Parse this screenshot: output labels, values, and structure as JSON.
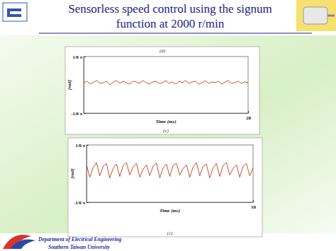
{
  "page": {
    "title": "Sensorless speed control using the signum function at 2000 r/min",
    "department": "Department of Electrical Engineering",
    "university": "Southern Taiwan University"
  },
  "chart_data": [
    {
      "type": "line",
      "header": "(d)",
      "caption": "(c)",
      "x_label": "Time (ms)",
      "y_label": "[rad]",
      "x": [
        0,
        0.4,
        0.8,
        1.2,
        1.6,
        2,
        2.4,
        2.8,
        3.2,
        3.6,
        4,
        4.4,
        4.8,
        5.2,
        5.6,
        6,
        6.4,
        6.8,
        7.2,
        7.6,
        8,
        8.4,
        8.8,
        9.2,
        9.6,
        10,
        10.4,
        10.8,
        11.2,
        11.6,
        12,
        12.4,
        12.8,
        13.2,
        13.6,
        14,
        14.4,
        14.8,
        15.2,
        15.6,
        16,
        16.4,
        16.8,
        17.2,
        17.6,
        18,
        18.4,
        18.8,
        19.2,
        19.6,
        20
      ],
      "series": [
        {
          "color": "#c8502d",
          "values": [
            0.03,
            0.05,
            0.01,
            0.04,
            0.06,
            0.02,
            0.03,
            0.05,
            0.0,
            0.04,
            0.06,
            0.02,
            0.05,
            0.03,
            0.01,
            0.05,
            0.04,
            0.02,
            0.06,
            0.03,
            0.01,
            0.04,
            0.05,
            0.02,
            0.03,
            0.06,
            0.02,
            0.04,
            0.01,
            0.05,
            0.03,
            0.06,
            0.02,
            0.04,
            0.05,
            0.01,
            0.03,
            0.06,
            0.02,
            0.04,
            0.03,
            0.05,
            0.01,
            0.04,
            0.06,
            0.02,
            0.03,
            0.05,
            0.02,
            0.04,
            0.03
          ]
        }
      ],
      "xlim": [
        0,
        20
      ],
      "xticks": [
        20
      ],
      "ylim": [
        -0.3927,
        0.3927
      ],
      "yticks": [
        {
          "value": -0.3927,
          "label": "-1/8 π"
        },
        {
          "value": 0.3927,
          "label": "1/8 π"
        }
      ],
      "grid": false
    },
    {
      "type": "line",
      "caption": "(c)",
      "x_label": "Time (ms)",
      "y_label": "[rad]",
      "x": [
        0,
        0.2,
        0.4,
        0.6,
        0.8,
        1,
        1.2,
        1.4,
        1.6,
        1.8,
        2,
        2.2,
        2.4,
        2.6,
        2.8,
        3,
        3.2,
        3.4,
        3.6,
        3.8,
        4,
        4.2,
        4.4,
        4.6,
        4.8,
        5,
        5.2,
        5.4,
        5.6,
        5.8,
        6,
        6.2,
        6.4,
        6.6,
        6.8,
        7,
        7.2,
        7.4,
        7.6,
        7.8,
        8,
        8.2,
        8.4,
        8.6,
        8.8,
        9,
        9.2,
        9.4,
        9.6,
        9.8,
        10
      ],
      "series": [
        {
          "color": "#c8502d",
          "values": [
            0.12,
            -0.05,
            0.08,
            0.15,
            -0.03,
            0.1,
            0.14,
            -0.06,
            0.07,
            0.13,
            -0.04,
            0.11,
            0.15,
            -0.02,
            0.09,
            0.14,
            -0.05,
            0.06,
            0.12,
            -0.03,
            0.1,
            0.15,
            -0.06,
            0.08,
            0.13,
            -0.04,
            0.11,
            0.14,
            -0.02,
            0.07,
            0.12,
            -0.05,
            0.09,
            0.15,
            -0.03,
            0.1,
            0.13,
            -0.06,
            0.08,
            0.14,
            -0.04,
            0.11,
            0.15,
            -0.02,
            0.07,
            0.12,
            -0.05,
            0.1,
            0.14,
            -0.03,
            0.08
          ]
        }
      ],
      "xlim": [
        0,
        10
      ],
      "xticks": [
        10
      ],
      "ylim": [
        -0.3927,
        0.3927
      ],
      "yticks": [
        {
          "value": -0.3927,
          "label": "-1/8 π"
        },
        {
          "value": 0.3927,
          "label": "1/8 π"
        }
      ],
      "grid": false
    }
  ]
}
